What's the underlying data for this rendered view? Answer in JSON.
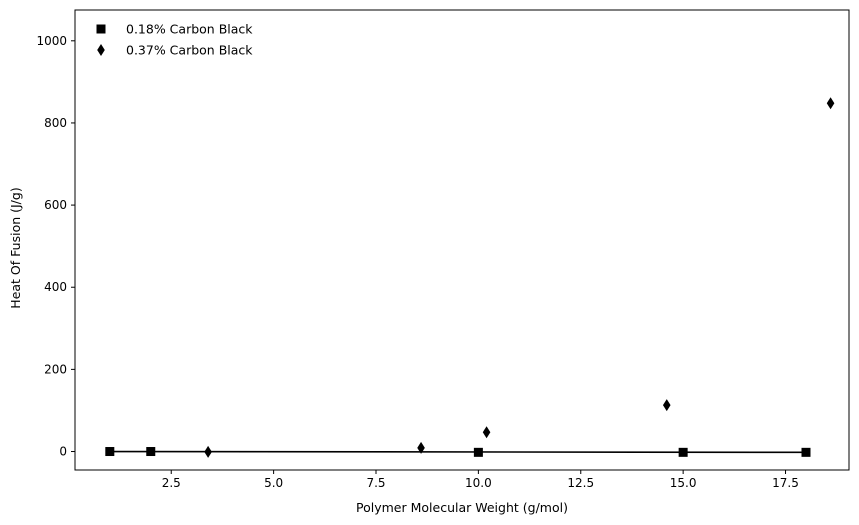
{
  "chart_data": {
    "type": "scatter",
    "title": "",
    "xlabel": "Polymer Molecular Weight (g/mol)",
    "ylabel": "Heat Of Fusion (J/g)",
    "xlim": [
      0.15,
      19.05
    ],
    "ylim": [
      -45,
      1075
    ],
    "xticks": [
      2.5,
      5.0,
      7.5,
      10.0,
      12.5,
      15.0,
      17.5
    ],
    "xtick_labels": [
      "2.5",
      "5.0",
      "7.5",
      "10.0",
      "12.5",
      "15.0",
      "17.5"
    ],
    "yticks": [
      0,
      200,
      400,
      600,
      800,
      1000
    ],
    "ytick_labels": [
      "0",
      "200",
      "400",
      "600",
      "800",
      "1000"
    ],
    "grid": false,
    "legend_placement": "top-left",
    "series": [
      {
        "name": "0.18% Carbon Black",
        "marker": "square",
        "color": "#000000",
        "fit_line": true,
        "x": [
          1.0,
          2.0,
          10.0,
          15.0,
          18.0
        ],
        "y": [
          0,
          0,
          -2,
          -2,
          -2
        ],
        "fit_line_points": [
          [
            1.0,
            0
          ],
          [
            18.0,
            -2
          ]
        ]
      },
      {
        "name": "0.37% Carbon Black",
        "marker": "thin_diamond",
        "color": "#000000",
        "fit_line": false,
        "x": [
          3.4,
          8.6,
          10.2,
          14.6,
          18.6
        ],
        "y": [
          -1,
          9,
          47,
          113,
          848
        ]
      }
    ]
  }
}
